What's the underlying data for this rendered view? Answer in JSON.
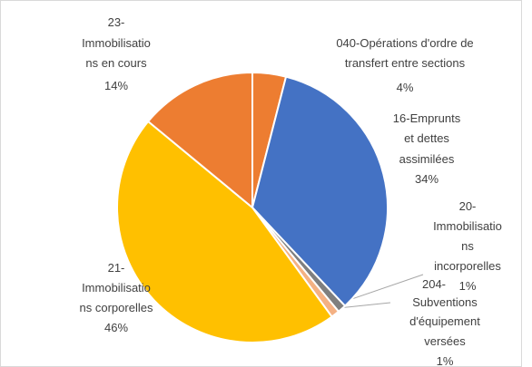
{
  "chart_data": {
    "type": "pie",
    "categories": [
      [
        "040-Opérations d'ordre de",
        "transfert entre sections"
      ],
      [
        "16-Emprunts",
        "et dettes",
        "assimilées"
      ],
      [
        "20-",
        "Immobilisatio",
        "ns",
        "incorporelles"
      ],
      [
        "204-",
        "Subventions",
        "d'équipement",
        "versées"
      ],
      [
        "21-",
        "Immobilisatio",
        "ns corporelles"
      ],
      [
        "23-",
        "Immobilisatio",
        "ns en cours"
      ]
    ],
    "values": [
      4,
      34,
      1,
      1,
      46,
      14
    ],
    "value_labels": [
      "4%",
      "34%",
      "1%",
      "1%",
      "46%",
      "14%"
    ],
    "colors": [
      "#ED7D31",
      "#4472C4",
      "#7F7F7F",
      "#F4B183",
      "#FFC000",
      "#ED7D31"
    ]
  }
}
